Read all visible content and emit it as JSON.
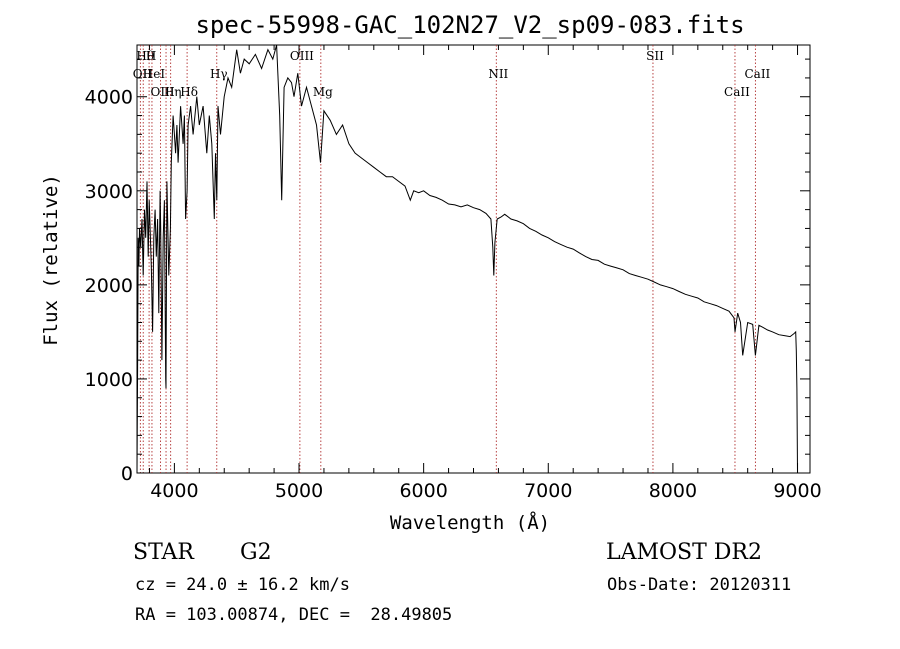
{
  "chart_data": {
    "type": "line",
    "title": "spec-55998-GAC_102N27_V2_sp09-083.fits",
    "xlabel": "Wavelength (Å)",
    "ylabel": "Flux (relative)",
    "xlim": [
      3700,
      9100
    ],
    "ylim": [
      0,
      4550
    ],
    "xticks": [
      4000,
      5000,
      6000,
      7000,
      8000,
      9000
    ],
    "yticks": [
      0,
      1000,
      2000,
      3000,
      4000
    ],
    "grid": false,
    "spectrum": {
      "x": [
        3700,
        3705,
        3710,
        3715,
        3720,
        3730,
        3740,
        3750,
        3760,
        3770,
        3780,
        3790,
        3798,
        3805,
        3815,
        3825,
        3835,
        3845,
        3855,
        3865,
        3875,
        3885,
        3890,
        3900,
        3910,
        3920,
        3930,
        3933,
        3940,
        3955,
        3968,
        3975,
        3990,
        4000,
        4010,
        4020,
        4030,
        4050,
        4070,
        4080,
        4090,
        4102,
        4110,
        4130,
        4150,
        4180,
        4200,
        4230,
        4260,
        4280,
        4300,
        4320,
        4330,
        4340,
        4350,
        4370,
        4400,
        4430,
        4460,
        4480,
        4500,
        4530,
        4560,
        4600,
        4650,
        4700,
        4750,
        4790,
        4820,
        4845,
        4861,
        4880,
        4910,
        4940,
        4960,
        4990,
        5020,
        5060,
        5100,
        5140,
        5172,
        5200,
        5250,
        5300,
        5350,
        5400,
        5450,
        5500,
        5550,
        5600,
        5650,
        5700,
        5750,
        5800,
        5850,
        5893,
        5920,
        5960,
        6000,
        6050,
        6100,
        6150,
        6200,
        6250,
        6300,
        6350,
        6400,
        6450,
        6500,
        6540,
        6555,
        6563,
        6572,
        6590,
        6620,
        6650,
        6700,
        6750,
        6800,
        6850,
        6900,
        6950,
        7000,
        7050,
        7100,
        7150,
        7200,
        7250,
        7300,
        7350,
        7400,
        7450,
        7500,
        7550,
        7600,
        7650,
        7700,
        7750,
        7800,
        7850,
        7900,
        7950,
        8000,
        8050,
        8100,
        8150,
        8200,
        8250,
        8300,
        8350,
        8400,
        8450,
        8490,
        8498,
        8520,
        8542,
        8560,
        8600,
        8640,
        8662,
        8690,
        8720,
        8760,
        8800,
        8850,
        8900,
        8940,
        8970,
        8985,
        8990,
        8995,
        9000
      ],
      "y": [
        0,
        1100,
        2500,
        2200,
        2600,
        2400,
        2700,
        2100,
        2800,
        2500,
        3100,
        2300,
        2900,
        2600,
        2200,
        1500,
        2500,
        2800,
        2300,
        2700,
        1700,
        3000,
        2600,
        1200,
        2500,
        2900,
        1000,
        900,
        3100,
        2100,
        2600,
        3300,
        3800,
        3600,
        3400,
        3700,
        3300,
        3900,
        3500,
        3800,
        2700,
        3000,
        3700,
        3900,
        3600,
        4000,
        3700,
        3900,
        3400,
        3800,
        3500,
        2700,
        3400,
        2900,
        3900,
        3600,
        4000,
        4200,
        4100,
        4300,
        4500,
        4250,
        4400,
        4350,
        4450,
        4300,
        4500,
        4400,
        4550,
        3800,
        2900,
        4100,
        4200,
        4150,
        4000,
        4250,
        3900,
        4100,
        3900,
        3700,
        3300,
        3850,
        3750,
        3600,
        3700,
        3500,
        3400,
        3350,
        3300,
        3250,
        3200,
        3150,
        3150,
        3100,
        3050,
        2900,
        3000,
        2980,
        3000,
        2950,
        2930,
        2900,
        2860,
        2850,
        2830,
        2850,
        2820,
        2800,
        2760,
        2700,
        2400,
        2100,
        2450,
        2700,
        2720,
        2750,
        2700,
        2680,
        2650,
        2600,
        2570,
        2530,
        2500,
        2460,
        2430,
        2400,
        2380,
        2340,
        2300,
        2270,
        2260,
        2220,
        2200,
        2180,
        2160,
        2120,
        2100,
        2080,
        2060,
        2030,
        2000,
        1980,
        1960,
        1930,
        1900,
        1880,
        1860,
        1820,
        1800,
        1780,
        1750,
        1720,
        1650,
        1500,
        1700,
        1600,
        1250,
        1600,
        1580,
        1250,
        1570,
        1550,
        1520,
        1500,
        1470,
        1460,
        1450,
        1480,
        1500,
        1300,
        900,
        0
      ]
    },
    "lines": [
      {
        "x": 3750,
        "label": "Hθ",
        "row": 0
      },
      {
        "x": 3797,
        "label": "H",
        "row": 0
      },
      {
        "x": 3727,
        "label": "OII",
        "row": 1
      },
      {
        "x": 3820,
        "label": "HeI",
        "row": 1
      },
      {
        "x": 3889,
        "label": "OIII",
        "row": 2
      },
      {
        "x": 3970,
        "label": "Hη",
        "row": 2
      },
      {
        "x": 3933,
        "label": "",
        "row": 2
      },
      {
        "x": 4102,
        "label": "Hδ",
        "row": 2
      },
      {
        "x": 4340,
        "label": "Hγ",
        "row": 1
      },
      {
        "x": 5007,
        "label": "OIII",
        "row": 0
      },
      {
        "x": 5175,
        "label": "Mg",
        "row": 2
      },
      {
        "x": 6583,
        "label": "NII",
        "row": 1
      },
      {
        "x": 7840,
        "label": "SII",
        "row": 0
      },
      {
        "x": 8498,
        "label": "CaII",
        "row": 2
      },
      {
        "x": 8662,
        "label": "CaII",
        "row": 1
      }
    ]
  },
  "info": {
    "object_class": "STAR",
    "subclass": "G2",
    "survey": "LAMOST DR2",
    "cz": "cz = 24.0 ± 16.2 km/s",
    "obs_date": "Obs-Date: 20120311",
    "radec": "RA = 103.00874, DEC =  28.49805"
  }
}
